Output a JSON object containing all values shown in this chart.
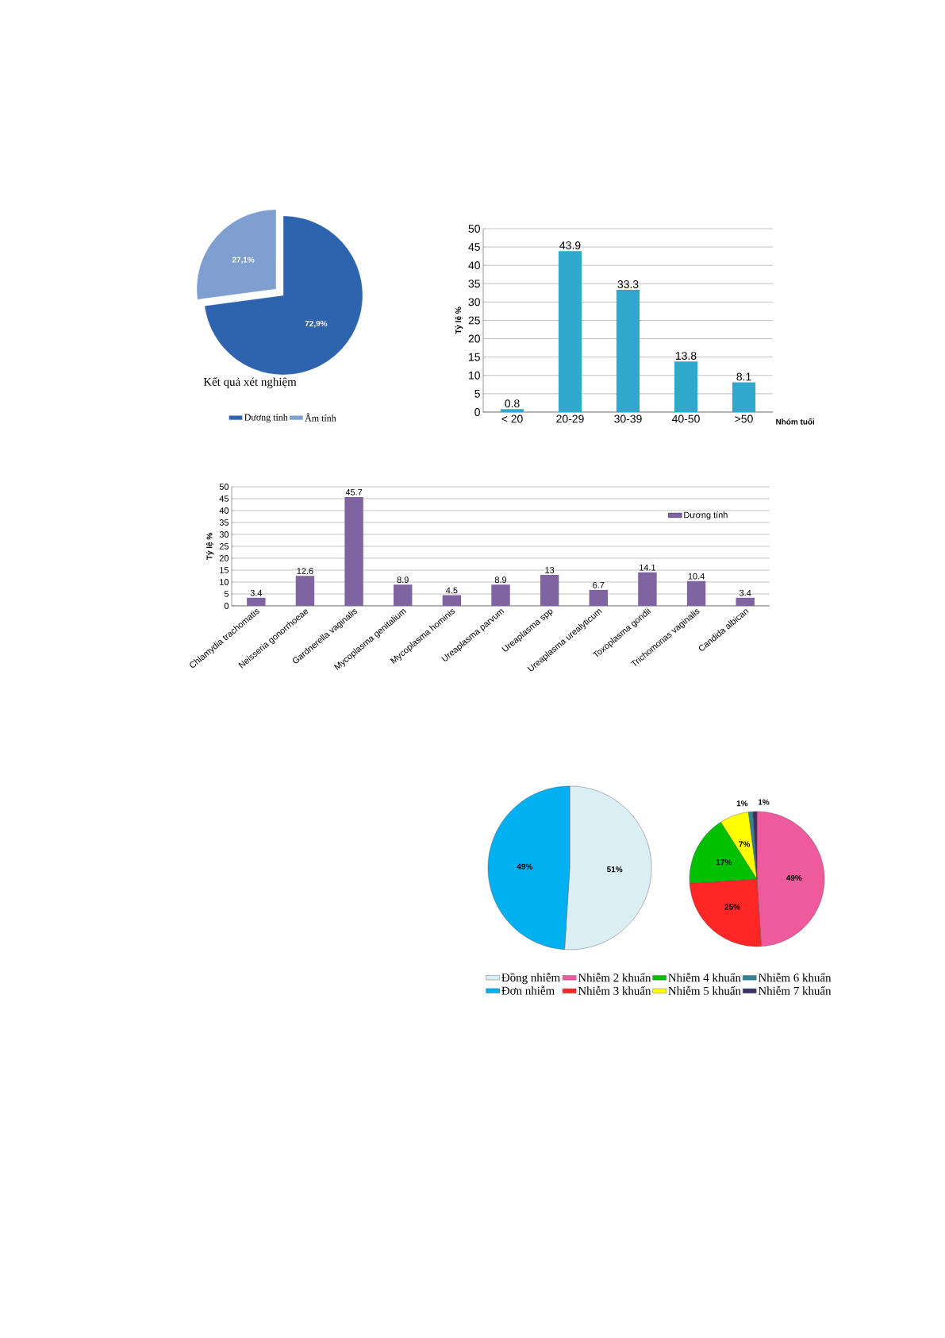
{
  "chart_data": [
    {
      "type": "pie",
      "title": "Kết quả xét nghiệm",
      "categories": [
        "Dương tính",
        "Âm tính"
      ],
      "values": [
        72.9,
        27.1
      ],
      "colors": [
        "#2e63ae",
        "#7f9fd0"
      ],
      "value_labels": [
        "72,9%",
        "27,1%"
      ],
      "legend": "bottom"
    },
    {
      "type": "bar",
      "xlabel": "Nhóm tuổi",
      "ylabel": "Tỷ lệ %",
      "categories": [
        "< 20",
        "20-29",
        "30-39",
        "40-50",
        ">50"
      ],
      "values": [
        0.8,
        43.9,
        33.3,
        13.8,
        8.1
      ],
      "color": "#30a8cc",
      "ylim": [
        0,
        50
      ],
      "yticks": [
        0,
        5,
        10,
        15,
        20,
        25,
        30,
        35,
        40,
        45,
        50
      ],
      "grid": "y",
      "data_labels": true
    },
    {
      "type": "bar",
      "ylabel": "Tỷ lệ %",
      "categories": [
        "Chlamydia trachomatis",
        "Neisseria gonorrhoeae",
        "Gardnerella vaginalis",
        "Mycoplasma genitalium",
        "Mycoplasma hominis",
        "Ureaplasma parvum",
        "Ureaplasma spp",
        "Ureaplasma urealyticum",
        "Toxoplasma gondii",
        "Trichomonas vaginalis",
        "Candida albican"
      ],
      "series": [
        {
          "name": "Dương tính",
          "color": "#8064a2",
          "values": [
            3.4,
            12.6,
            45.7,
            8.9,
            4.5,
            8.9,
            13,
            6.7,
            14.1,
            10.4,
            3.4
          ]
        }
      ],
      "ylim": [
        0,
        50
      ],
      "yticks": [
        0,
        5,
        10,
        15,
        20,
        25,
        30,
        35,
        40,
        45,
        50
      ],
      "grid": "y",
      "data_labels": true,
      "legend": "top right"
    },
    {
      "type": "pie",
      "categories": [
        "Đồng nhiễm",
        "Đơn nhiễm"
      ],
      "values": [
        51,
        49
      ],
      "colors": [
        "#dbeef4",
        "#00b0f0"
      ],
      "value_labels": [
        "51%",
        "49%"
      ],
      "legend": "bottom"
    },
    {
      "type": "pie",
      "categories": [
        "Nhiễm 2 khuẩn",
        "Nhiễm 3 khuẩn",
        "Nhiễm 4 khuẩn",
        "Nhiễm 5 khuẩn",
        "Nhiễm 6 khuẩn",
        "Nhiễm 7 khuẩn"
      ],
      "values": [
        49,
        25,
        17,
        7,
        1,
        1
      ],
      "colors": [
        "#ee5a9c",
        "#ff2626",
        "#00c000",
        "#ffff00",
        "#31849b",
        "#403060"
      ],
      "value_labels": [
        "49%",
        "25%",
        "17%",
        "7%",
        "1%",
        "1%"
      ],
      "legend": "bottom"
    }
  ]
}
